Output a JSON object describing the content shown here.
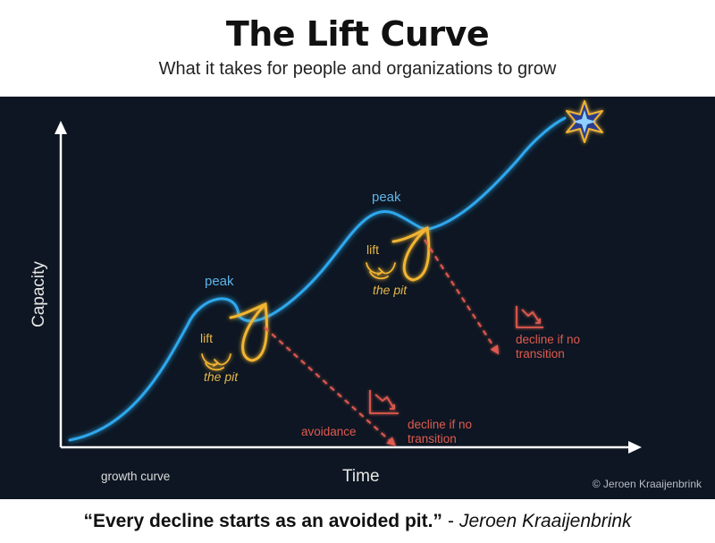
{
  "header": {
    "title": "The Lift Curve",
    "subtitle": "What it takes for people and organizations to grow"
  },
  "diagram": {
    "x_axis_label": "Time",
    "y_axis_label": "Capacity",
    "legend": "growth curve",
    "copyright": "© Jeroen Kraaijenbrink",
    "peak_1": "peak",
    "peak_2": "peak",
    "lift_1": "lift",
    "lift_2": "lift",
    "pit_1": "the pit",
    "pit_2": "the pit",
    "avoidance": "avoidance",
    "decline_1": [
      "decline if no",
      "transition"
    ],
    "decline_2": [
      "decline if no",
      "transition"
    ]
  },
  "colors": {
    "curve": "#2fa8ee",
    "pit": "#f2b531",
    "decline": "#e05a4f",
    "background": "#0d1622",
    "axis": "#ffffff"
  },
  "icons": [
    "lift-arrows-icon",
    "chart-down-icon",
    "star-icon"
  ],
  "footer": {
    "quote": "“Every decline starts as an avoided pit.”",
    "dash": "-",
    "author": "Jeroen Kraaijenbrink"
  }
}
